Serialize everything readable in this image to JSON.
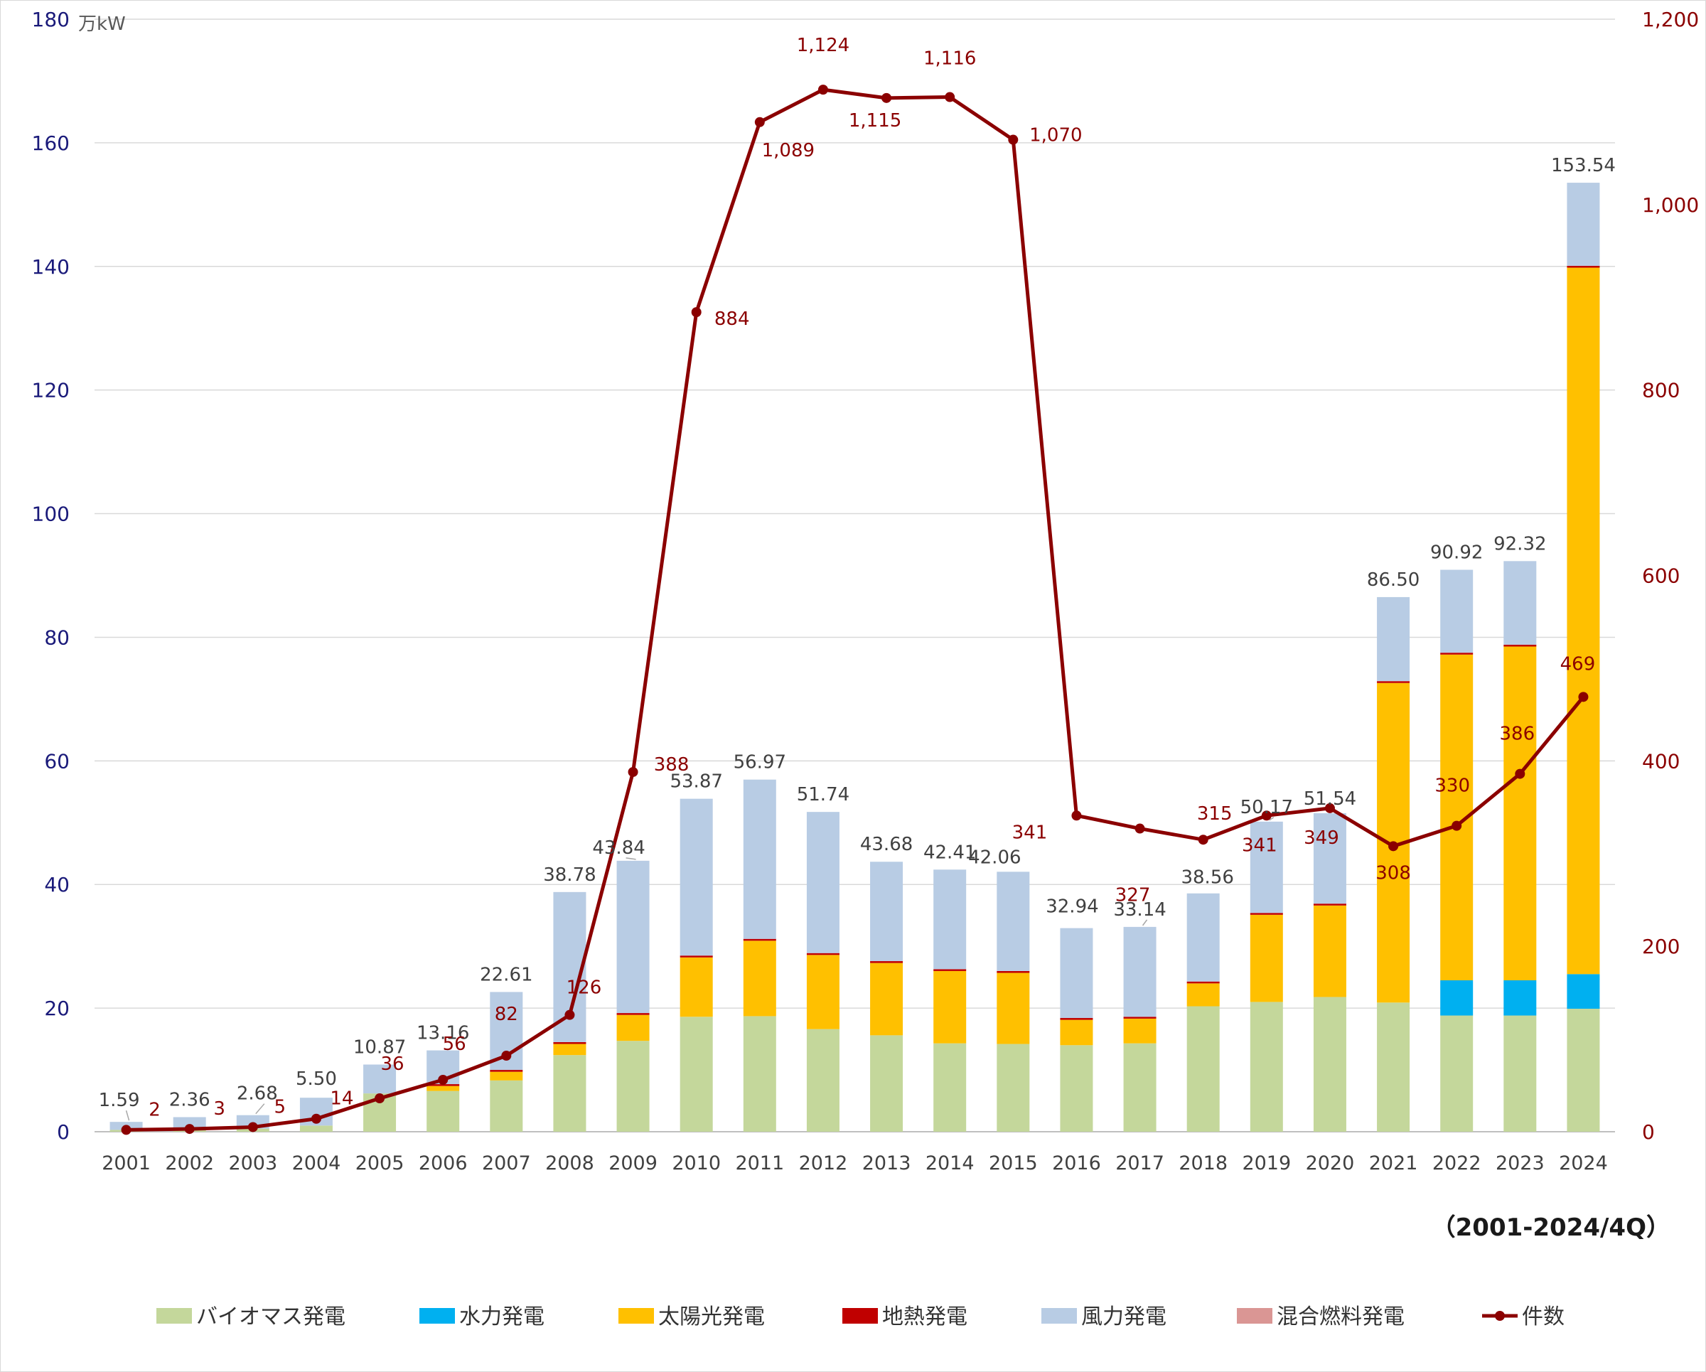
{
  "chart_data": {
    "type": "bar",
    "stacked": true,
    "combo": "bar+line",
    "y_unit": "万kW",
    "note": "（2001-2024/4Q）",
    "ylim": [
      0,
      180
    ],
    "y_ticks": [
      "0",
      "20",
      "40",
      "60",
      "80",
      "100",
      "120",
      "140",
      "160",
      "180"
    ],
    "y2lim": [
      0,
      1200
    ],
    "y2_ticks": [
      "0",
      "200",
      "400",
      "600",
      "800",
      "1,000",
      "1,200"
    ],
    "grid": true,
    "legend_position": "bottom",
    "categories": [
      "2001",
      "2002",
      "2003",
      "2004",
      "2005",
      "2006",
      "2007",
      "2008",
      "2009",
      "2010",
      "2011",
      "2012",
      "2013",
      "2014",
      "2015",
      "2016",
      "2017",
      "2018",
      "2019",
      "2020",
      "2021",
      "2022",
      "2023",
      "2024"
    ],
    "series": [
      {
        "name": "バイオマス発電",
        "color": "#c4d79b",
        "values": [
          0.3,
          0.4,
          0.5,
          1.0,
          6.2,
          6.6,
          8.3,
          12.4,
          14.7,
          18.6,
          18.7,
          16.6,
          15.6,
          14.3,
          14.2,
          14.0,
          14.3,
          20.3,
          21.0,
          21.8,
          20.9,
          18.8,
          18.8,
          19.9
        ]
      },
      {
        "name": "水力発電",
        "color": "#00b0f0",
        "values": [
          0,
          0,
          0,
          0,
          0,
          0,
          0,
          0,
          0,
          0,
          0,
          0,
          0,
          0,
          0,
          0,
          0,
          0,
          0,
          0,
          0,
          5.7,
          5.7,
          5.6
        ]
      },
      {
        "name": "太陽光発電",
        "color": "#ffc000",
        "values": [
          0,
          0,
          0,
          0,
          0,
          0.8,
          1.4,
          1.8,
          4.2,
          9.6,
          12.2,
          12.0,
          11.7,
          11.7,
          11.5,
          4.1,
          4.0,
          3.7,
          14.1,
          14.8,
          51.7,
          52.7,
          54.0,
          114.3
        ]
      },
      {
        "name": "地熱発電",
        "color": "#c00000",
        "values": [
          0,
          0,
          0,
          0,
          0,
          0.3,
          0.3,
          0.3,
          0.3,
          0.3,
          0.3,
          0.3,
          0.3,
          0.3,
          0.3,
          0.3,
          0.3,
          0.3,
          0.3,
          0.3,
          0.3,
          0.3,
          0.3,
          0.3
        ]
      },
      {
        "name": "風力発電",
        "color": "#b8cce4",
        "values": [
          1.29,
          1.96,
          2.18,
          4.5,
          4.67,
          5.46,
          12.61,
          24.28,
          24.64,
          25.37,
          25.77,
          22.84,
          16.08,
          16.11,
          16.06,
          14.54,
          14.54,
          14.26,
          14.77,
          14.64,
          13.6,
          13.42,
          13.52,
          13.44
        ]
      },
      {
        "name": "混合燃料発電",
        "color": "#da9694",
        "values": [
          0,
          0,
          0,
          0,
          0,
          0,
          0,
          0,
          0,
          0,
          0,
          0,
          0,
          0,
          0,
          0,
          0,
          0,
          0,
          0,
          0,
          0,
          0,
          0
        ]
      }
    ],
    "totals": [
      1.59,
      2.36,
      2.68,
      5.5,
      10.87,
      13.16,
      22.61,
      38.78,
      43.84,
      53.87,
      56.97,
      51.74,
      43.68,
      42.41,
      42.06,
      32.94,
      33.14,
      38.56,
      50.17,
      51.54,
      86.5,
      90.92,
      92.32,
      153.54
    ],
    "totals_text": [
      "1.59",
      "2.36",
      "2.68",
      "5.50",
      "10.87",
      "13.16",
      "22.61",
      "38.78",
      "43.84",
      "53.87",
      "56.97",
      "51.74",
      "43.68",
      "42.41",
      "42.06",
      "32.94",
      "33.14",
      "38.56",
      "50.17",
      "51.54",
      "86.50",
      "90.92",
      "92.32",
      "153.54"
    ],
    "line": {
      "name": "件数",
      "color": "#8b0000",
      "axis": "right",
      "values": [
        2,
        3,
        5,
        14,
        36,
        56,
        82,
        126,
        388,
        884,
        1089,
        1124,
        1115,
        1116,
        1070,
        341,
        327,
        315,
        341,
        349,
        308,
        330,
        386,
        469
      ],
      "labels": [
        "2",
        "3",
        "5",
        "14",
        "36",
        "56",
        "82",
        "126",
        "388",
        "884",
        "1,089",
        "1,124",
        "1,115",
        "1,116",
        "1,070",
        "341",
        "327",
        "315",
        "341",
        "349",
        "308",
        "330",
        "386",
        "469"
      ]
    }
  }
}
